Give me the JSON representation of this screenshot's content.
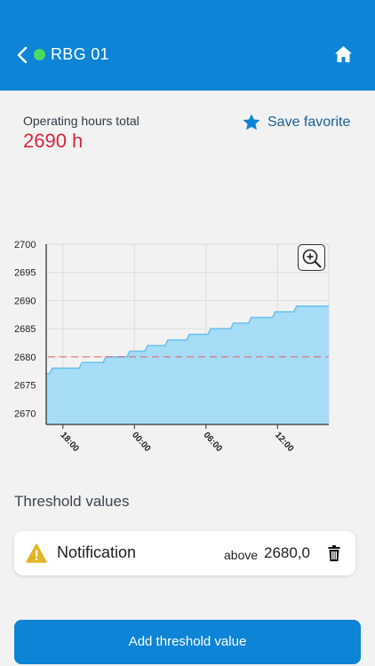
{
  "header": {
    "title": "RBG 01",
    "status_color": "#4cd964",
    "background": "#0d84d6",
    "back_icon": "chevron-left-icon",
    "home_icon": "home-icon"
  },
  "summary": {
    "label": "Operating hours total",
    "value": "2690 h",
    "value_color": "#d9263f"
  },
  "favorite": {
    "label": "Save favorite",
    "icon": "star-icon"
  },
  "chart_data": {
    "type": "area",
    "y_ticks": [
      "2700",
      "2695",
      "2690",
      "2685",
      "2680",
      "2675",
      "2670"
    ],
    "ylim": [
      2668,
      2700
    ],
    "x_ticks": [
      "18:00",
      "00:00",
      "06:00",
      "12:00"
    ],
    "x_tick_hours": [
      18,
      24,
      30,
      36
    ],
    "xlim": [
      16.6,
      40.3
    ],
    "steps": [
      {
        "x": 16.6,
        "y": 2677
      },
      {
        "x": 17.1,
        "y": 2678
      },
      {
        "x": 19.6,
        "y": 2679
      },
      {
        "x": 21.6,
        "y": 2680
      },
      {
        "x": 23.6,
        "y": 2681
      },
      {
        "x": 25.1,
        "y": 2682
      },
      {
        "x": 26.8,
        "y": 2683
      },
      {
        "x": 28.6,
        "y": 2684
      },
      {
        "x": 30.4,
        "y": 2685
      },
      {
        "x": 32.3,
        "y": 2686
      },
      {
        "x": 33.8,
        "y": 2687
      },
      {
        "x": 35.8,
        "y": 2688
      },
      {
        "x": 37.6,
        "y": 2689
      },
      {
        "x": 40.3,
        "y": 2689
      }
    ],
    "threshold_line": 2680,
    "fill_color": "#a6dcf6",
    "line_color": "#67c1ea",
    "threshold_color": "#e06060",
    "grid": true
  },
  "zoom": {
    "icon": "zoom-in-icon"
  },
  "thresholds": {
    "title": "Threshold values",
    "items": [
      {
        "icon": "warning-icon",
        "name": "Notification",
        "direction": "above",
        "value": "2680,0",
        "delete_icon": "trash-icon"
      }
    ]
  },
  "add_button": {
    "label": "Add threshold value"
  }
}
